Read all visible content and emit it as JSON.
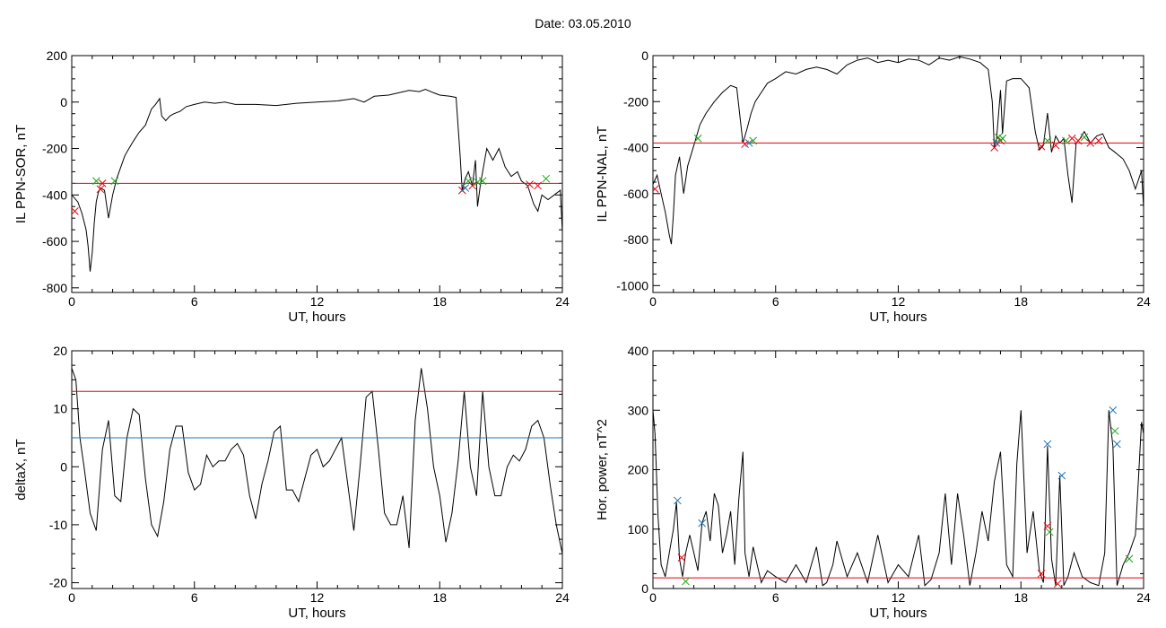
{
  "page": {
    "title": "Date:  03.05.2010"
  },
  "chart_data": [
    {
      "id": "p1",
      "type": "line",
      "xlabel": "UT, hours",
      "ylabel": "IL PPN-SOR, nT",
      "xlim": [
        0,
        24
      ],
      "ylim": [
        -820,
        200
      ],
      "xticks": [
        0,
        6,
        12,
        18,
        24
      ],
      "yticks": [
        -800,
        -600,
        -400,
        -200,
        0,
        200
      ],
      "thresholds": [
        {
          "value": -350,
          "color": "#e8000b"
        }
      ],
      "series": [
        {
          "color": "#000000",
          "x": [
            0,
            0.3,
            0.5,
            0.7,
            0.8,
            0.9,
            1.0,
            1.1,
            1.2,
            1.3,
            1.4,
            1.6,
            1.8,
            2.0,
            2.2,
            2.4,
            2.6,
            2.8,
            3.0,
            3.3,
            3.6,
            3.9,
            4.1,
            4.3,
            4.4,
            4.6,
            4.8,
            5.0,
            5.3,
            5.6,
            6.0,
            6.5,
            7.0,
            7.5,
            8.0,
            9.0,
            10.0,
            11.0,
            12.0,
            13.0,
            13.8,
            14.3,
            14.8,
            15.5,
            16.0,
            16.5,
            17.0,
            17.3,
            17.7,
            18.0,
            18.5,
            18.8,
            19.0,
            19.1,
            19.25,
            19.4,
            19.6,
            19.75,
            19.85,
            20.0,
            20.3,
            20.6,
            20.9,
            21.2,
            21.5,
            21.8,
            22.0,
            22.3,
            22.6,
            22.8,
            23.0,
            23.3,
            23.6,
            23.9,
            24.0
          ],
          "y": [
            -400,
            -430,
            -480,
            -550,
            -620,
            -730,
            -650,
            -520,
            -430,
            -390,
            -370,
            -380,
            -500,
            -400,
            -330,
            -280,
            -230,
            -200,
            -170,
            -130,
            -100,
            -30,
            -10,
            15,
            -60,
            -80,
            -60,
            -50,
            -40,
            -20,
            -10,
            0,
            -5,
            0,
            -10,
            -10,
            -15,
            -5,
            0,
            5,
            15,
            0,
            25,
            30,
            40,
            50,
            45,
            55,
            40,
            30,
            25,
            20,
            -230,
            -380,
            -330,
            -300,
            -360,
            -250,
            -450,
            -350,
            -200,
            -250,
            -200,
            -280,
            -320,
            -300,
            -340,
            -360,
            -440,
            -470,
            -400,
            -420,
            -400,
            -380,
            -560
          ]
        }
      ],
      "markers": [
        {
          "x": 0.15,
          "y": -470,
          "color": "#e8000b"
        },
        {
          "x": 1.2,
          "y": -340,
          "color": "#1aa81a"
        },
        {
          "x": 1.4,
          "y": -375,
          "color": "#e8000b"
        },
        {
          "x": 1.5,
          "y": -350,
          "color": "#e8000b"
        },
        {
          "x": 2.1,
          "y": -340,
          "color": "#1aa81a"
        },
        {
          "x": 19.1,
          "y": -380,
          "color": "#e8000b"
        },
        {
          "x": 19.25,
          "y": -370,
          "color": "#1f77b4"
        },
        {
          "x": 19.4,
          "y": -340,
          "color": "#1aa81a"
        },
        {
          "x": 19.6,
          "y": -360,
          "color": "#e8000b"
        },
        {
          "x": 19.85,
          "y": -345,
          "color": "#1aa81a"
        },
        {
          "x": 20.1,
          "y": -340,
          "color": "#1aa81a"
        },
        {
          "x": 22.4,
          "y": -355,
          "color": "#e8000b"
        },
        {
          "x": 22.8,
          "y": -360,
          "color": "#e8000b"
        },
        {
          "x": 23.2,
          "y": -330,
          "color": "#1aa81a"
        }
      ]
    },
    {
      "id": "p2",
      "type": "line",
      "xlabel": "UT, hours",
      "ylabel": "IL PPN-NAL, nT",
      "xlim": [
        0,
        24
      ],
      "ylim": [
        -1030,
        0
      ],
      "xticks": [
        0,
        6,
        12,
        18,
        24
      ],
      "yticks": [
        -1000,
        -800,
        -600,
        -400,
        -200,
        0
      ],
      "thresholds": [
        {
          "value": -380,
          "color": "#e8000b"
        }
      ],
      "series": [
        {
          "color": "#000000",
          "x": [
            0,
            0.2,
            0.4,
            0.6,
            0.8,
            0.9,
            1.0,
            1.1,
            1.3,
            1.5,
            1.7,
            1.9,
            2.1,
            2.3,
            2.6,
            3.0,
            3.4,
            3.8,
            4.1,
            4.4,
            4.6,
            4.8,
            5.0,
            5.3,
            5.6,
            6.0,
            6.5,
            7.0,
            7.5,
            8.0,
            8.5,
            9.0,
            9.5,
            10.0,
            10.5,
            11.0,
            11.5,
            12.0,
            12.5,
            13.0,
            13.5,
            14.0,
            14.5,
            15.0,
            15.5,
            16.0,
            16.4,
            16.6,
            16.7,
            16.8,
            17.0,
            17.1,
            17.3,
            17.6,
            18.0,
            18.4,
            18.7,
            18.9,
            19.1,
            19.3,
            19.5,
            19.7,
            19.9,
            20.1,
            20.3,
            20.5,
            20.7,
            20.9,
            21.1,
            21.4,
            21.7,
            22.0,
            22.3,
            22.6,
            23.0,
            23.3,
            23.6,
            23.9,
            24.0
          ],
          "y": [
            -560,
            -520,
            -600,
            -680,
            -780,
            -820,
            -690,
            -520,
            -440,
            -600,
            -480,
            -420,
            -360,
            -300,
            -250,
            -200,
            -160,
            -130,
            -140,
            -380,
            -320,
            -250,
            -200,
            -160,
            -120,
            -100,
            -70,
            -80,
            -60,
            -50,
            -60,
            -80,
            -40,
            -20,
            -10,
            -30,
            -20,
            -30,
            -15,
            -20,
            -40,
            -10,
            -20,
            -5,
            -15,
            -30,
            -60,
            -200,
            -400,
            -370,
            -150,
            -340,
            -110,
            -100,
            -100,
            -140,
            -330,
            -410,
            -390,
            -250,
            -420,
            -350,
            -380,
            -360,
            -520,
            -640,
            -380,
            -360,
            -330,
            -380,
            -350,
            -340,
            -400,
            -420,
            -450,
            -500,
            -580,
            -500,
            -660
          ]
        }
      ],
      "markers": [
        {
          "x": 0.1,
          "y": -580,
          "color": "#e8000b"
        },
        {
          "x": 2.2,
          "y": -360,
          "color": "#1aa81a"
        },
        {
          "x": 4.5,
          "y": -385,
          "color": "#e8000b"
        },
        {
          "x": 4.7,
          "y": -380,
          "color": "#1f77b4"
        },
        {
          "x": 4.9,
          "y": -370,
          "color": "#1aa81a"
        },
        {
          "x": 16.7,
          "y": -400,
          "color": "#e8000b"
        },
        {
          "x": 16.8,
          "y": -380,
          "color": "#1f77b4"
        },
        {
          "x": 16.9,
          "y": -355,
          "color": "#1aa81a"
        },
        {
          "x": 17.0,
          "y": -370,
          "color": "#e8000b"
        },
        {
          "x": 17.1,
          "y": -360,
          "color": "#1aa81a"
        },
        {
          "x": 19.0,
          "y": -395,
          "color": "#e8000b"
        },
        {
          "x": 19.3,
          "y": -370,
          "color": "#1aa81a"
        },
        {
          "x": 19.7,
          "y": -390,
          "color": "#e8000b"
        },
        {
          "x": 20.2,
          "y": -370,
          "color": "#1aa81a"
        },
        {
          "x": 20.5,
          "y": -360,
          "color": "#e8000b"
        },
        {
          "x": 20.8,
          "y": -370,
          "color": "#e8000b"
        },
        {
          "x": 21.1,
          "y": -355,
          "color": "#1aa81a"
        },
        {
          "x": 21.4,
          "y": -380,
          "color": "#e8000b"
        },
        {
          "x": 21.8,
          "y": -370,
          "color": "#e8000b"
        }
      ]
    },
    {
      "id": "p3",
      "type": "line",
      "xlabel": "UT, hours",
      "ylabel": "deltaX, nT",
      "xlim": [
        0,
        24
      ],
      "ylim": [
        -21,
        20
      ],
      "xticks": [
        0,
        6,
        12,
        18,
        24
      ],
      "yticks": [
        -20,
        -10,
        0,
        10,
        20
      ],
      "thresholds": [
        {
          "value": 13,
          "color": "#e8000b"
        },
        {
          "value": 5,
          "color": "#1f77b4"
        }
      ],
      "series": [
        {
          "color": "#000000",
          "x": [
            0,
            0.2,
            0.4,
            0.6,
            0.9,
            1.2,
            1.5,
            1.8,
            2.1,
            2.4,
            2.7,
            3.0,
            3.3,
            3.6,
            3.9,
            4.2,
            4.5,
            4.8,
            5.1,
            5.4,
            5.7,
            6.0,
            6.3,
            6.6,
            6.9,
            7.2,
            7.5,
            7.8,
            8.1,
            8.4,
            8.7,
            9.0,
            9.3,
            9.6,
            9.9,
            10.2,
            10.5,
            10.8,
            11.1,
            11.4,
            11.7,
            12.0,
            12.3,
            12.6,
            12.9,
            13.2,
            13.5,
            13.8,
            14.1,
            14.4,
            14.7,
            15.0,
            15.3,
            15.6,
            15.9,
            16.2,
            16.5,
            16.8,
            17.1,
            17.4,
            17.7,
            18.0,
            18.3,
            18.6,
            18.9,
            19.2,
            19.5,
            19.8,
            20.1,
            20.4,
            20.7,
            21.0,
            21.3,
            21.6,
            21.9,
            22.2,
            22.5,
            22.8,
            23.1,
            23.4,
            23.7,
            24.0
          ],
          "y": [
            17,
            15,
            5,
            0,
            -8,
            -11,
            3,
            8,
            -5,
            -6,
            5,
            10,
            9,
            -2,
            -10,
            -12,
            -6,
            3,
            7,
            7,
            -1,
            -4,
            -3,
            2,
            0,
            1,
            1,
            3,
            4,
            2,
            -5,
            -9,
            -3,
            1,
            6,
            7,
            -4,
            -4,
            -6,
            -2,
            2,
            3,
            0,
            1,
            3,
            5,
            -3,
            -11,
            0,
            12,
            13,
            3,
            -8,
            -10,
            -10,
            -5,
            -14,
            8,
            17,
            10,
            0,
            -5,
            -13,
            -8,
            1,
            13,
            0,
            -5,
            13,
            0,
            -5,
            -5,
            0,
            2,
            1,
            3,
            7,
            8,
            5,
            -3,
            -10,
            -15
          ]
        }
      ],
      "markers": []
    },
    {
      "id": "p4",
      "type": "line",
      "xlabel": "UT, hours",
      "ylabel": "Hor. power, nT^2",
      "xlim": [
        0,
        24
      ],
      "ylim": [
        0,
        400
      ],
      "xticks": [
        0,
        6,
        12,
        18,
        24
      ],
      "yticks": [
        0,
        100,
        200,
        300,
        400
      ],
      "thresholds": [
        {
          "value": 18,
          "color": "#e8000b"
        }
      ],
      "series": [
        {
          "color": "#000000",
          "x": [
            0,
            0.1,
            0.25,
            0.4,
            0.6,
            0.8,
            1.0,
            1.15,
            1.3,
            1.45,
            1.6,
            1.8,
            2.0,
            2.2,
            2.4,
            2.6,
            2.8,
            3.0,
            3.2,
            3.4,
            3.6,
            3.8,
            4.0,
            4.2,
            4.4,
            4.5,
            4.7,
            4.9,
            5.1,
            5.3,
            5.6,
            6.0,
            6.5,
            7.0,
            7.5,
            8.0,
            8.3,
            8.5,
            8.8,
            9.0,
            9.5,
            10.0,
            10.5,
            11.0,
            11.5,
            12.0,
            12.5,
            13.0,
            13.3,
            13.6,
            14.0,
            14.3,
            14.6,
            14.9,
            15.2,
            15.5,
            15.8,
            16.1,
            16.4,
            16.7,
            17.0,
            17.3,
            17.6,
            17.8,
            18.0,
            18.3,
            18.6,
            18.9,
            19.1,
            19.3,
            19.5,
            19.7,
            19.9,
            20.1,
            20.3,
            20.6,
            21.0,
            21.4,
            21.8,
            22.1,
            22.3,
            22.5,
            22.7,
            23.0,
            23.3,
            23.6,
            23.9,
            24.0
          ],
          "y": [
            300,
            260,
            120,
            40,
            20,
            60,
            100,
            145,
            50,
            20,
            60,
            90,
            60,
            30,
            110,
            130,
            80,
            160,
            140,
            60,
            90,
            130,
            40,
            150,
            230,
            60,
            20,
            70,
            40,
            10,
            30,
            20,
            10,
            40,
            10,
            70,
            5,
            10,
            40,
            80,
            20,
            60,
            10,
            90,
            10,
            40,
            20,
            90,
            5,
            15,
            60,
            160,
            40,
            160,
            90,
            5,
            60,
            130,
            80,
            180,
            230,
            40,
            20,
            210,
            300,
            60,
            130,
            30,
            10,
            240,
            50,
            5,
            190,
            5,
            20,
            60,
            20,
            10,
            5,
            60,
            300,
            240,
            5,
            40,
            60,
            90,
            280,
            260
          ]
        }
      ],
      "markers": [
        {
          "x": 1.2,
          "y": 148,
          "color": "#1f77b4"
        },
        {
          "x": 1.4,
          "y": 52,
          "color": "#e8000b"
        },
        {
          "x": 1.6,
          "y": 12,
          "color": "#1aa81a"
        },
        {
          "x": 2.4,
          "y": 110,
          "color": "#1f77b4"
        },
        {
          "x": 19.0,
          "y": 25,
          "color": "#e8000b"
        },
        {
          "x": 19.3,
          "y": 243,
          "color": "#1f77b4"
        },
        {
          "x": 19.3,
          "y": 105,
          "color": "#e8000b"
        },
        {
          "x": 19.4,
          "y": 95,
          "color": "#1aa81a"
        },
        {
          "x": 19.8,
          "y": 8,
          "color": "#e8000b"
        },
        {
          "x": 20.0,
          "y": 190,
          "color": "#1f77b4"
        },
        {
          "x": 22.5,
          "y": 300,
          "color": "#1f77b4"
        },
        {
          "x": 22.6,
          "y": 265,
          "color": "#1aa81a"
        },
        {
          "x": 22.7,
          "y": 243,
          "color": "#1f77b4"
        },
        {
          "x": 23.3,
          "y": 50,
          "color": "#1aa81a"
        }
      ]
    }
  ]
}
